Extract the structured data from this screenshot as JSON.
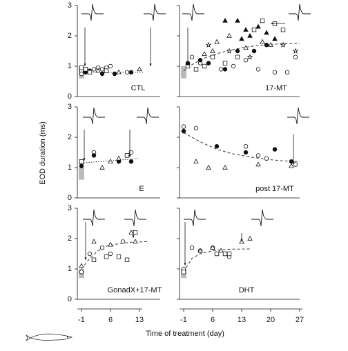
{
  "figure": {
    "y_label": "EOD duration (ms)",
    "x_label": "Time of treatment (day)"
  },
  "chart_data": [
    {
      "type": "scatter",
      "label": "CTL",
      "xlim": [
        -1,
        18
      ],
      "ylim": [
        0,
        3
      ],
      "yticks": [
        0,
        1,
        2,
        3
      ],
      "ytick_labels": true,
      "baseline_range": [
        0.6,
        1.0
      ],
      "fit": {
        "style": "dotted",
        "x": [
          -1,
          14
        ],
        "values": [
          0.8,
          0.8
        ]
      },
      "series": [
        {
          "marker": "circle",
          "filled": false,
          "x": [
            -1,
            -1,
            2,
            3,
            4,
            5,
            6,
            10
          ],
          "values": [
            0.85,
            0.75,
            0.9,
            0.95,
            0.9,
            0.95,
            1.0,
            0.8
          ]
        },
        {
          "marker": "circle",
          "filled": true,
          "x": [
            0,
            1,
            4,
            7,
            11
          ],
          "values": [
            0.8,
            0.85,
            0.75,
            0.75,
            0.8
          ]
        },
        {
          "marker": "triangle",
          "filled": false,
          "x": [
            3,
            8,
            13
          ],
          "values": [
            0.85,
            0.8,
            0.9
          ]
        },
        {
          "marker": "square",
          "filled": false,
          "x": [
            -1,
            0,
            1,
            5
          ],
          "values": [
            0.95,
            0.9,
            0.8,
            0.85
          ]
        }
      ]
    },
    {
      "type": "scatter",
      "label": "17-MT",
      "xlim": [
        -1,
        27
      ],
      "ylim": [
        0,
        3
      ],
      "yticks": [
        0,
        1,
        2,
        3
      ],
      "ytick_labels": false,
      "baseline_range": [
        0.6,
        1.0
      ],
      "fit": {
        "style": "dashed",
        "x": [
          -1,
          1,
          3,
          5,
          8,
          11,
          14,
          17,
          20,
          23,
          27
        ],
        "values": [
          0.85,
          1.05,
          1.2,
          1.32,
          1.45,
          1.55,
          1.63,
          1.68,
          1.72,
          1.74,
          1.75
        ]
      },
      "series": [
        {
          "marker": "triangle",
          "filled": true,
          "x": [
            9,
            12,
            13,
            14,
            15,
            17,
            19,
            21
          ],
          "values": [
            2.5,
            2.5,
            1.9,
            2.2,
            2.0,
            2.3,
            2.1,
            1.9
          ]
        },
        {
          "marker": "triangle",
          "filled": false,
          "x": [
            4,
            6,
            7,
            10,
            14,
            18,
            20
          ],
          "values": [
            1.4,
            1.5,
            1.8,
            2.0,
            1.6,
            1.8,
            1.7
          ]
        },
        {
          "marker": "star",
          "filled": false,
          "x": [
            5,
            10,
            15,
            23,
            26
          ],
          "values": [
            1.7,
            1.5,
            1.3,
            1.7,
            1.5
          ]
        },
        {
          "marker": "square",
          "filled": false,
          "x": [
            0,
            2,
            4,
            6,
            9,
            12,
            16,
            18,
            21,
            23
          ],
          "values": [
            1.0,
            0.9,
            1.0,
            1.3,
            1.1,
            1.3,
            2.2,
            2.5,
            2.4,
            2.2
          ]
        },
        {
          "marker": "circle",
          "filled": false,
          "x": [
            1,
            3,
            8,
            11,
            14,
            17,
            21,
            24,
            26
          ],
          "values": [
            1.3,
            1.1,
            0.9,
            1.0,
            1.2,
            0.9,
            0.8,
            0.8,
            1.3
          ]
        },
        {
          "marker": "circle",
          "filled": true,
          "x": [
            0,
            3,
            5,
            9,
            12,
            16,
            19
          ],
          "values": [
            1.1,
            1.2,
            1.1,
            0.9,
            1.5,
            1.5,
            1.7
          ]
        }
      ]
    },
    {
      "type": "scatter",
      "label": "E",
      "xlim": [
        -1,
        18
      ],
      "ylim": [
        0,
        3
      ],
      "yticks": [
        0,
        1,
        2,
        3
      ],
      "ytick_labels": true,
      "baseline_range": [
        0.6,
        1.0
      ],
      "fit": {
        "style": "dotted",
        "x": [
          -1,
          13
        ],
        "values": [
          1.15,
          1.3
        ]
      },
      "series": [
        {
          "marker": "circle",
          "filled": false,
          "x": [
            -1,
            2,
            11
          ],
          "values": [
            1.15,
            1.5,
            1.5
          ]
        },
        {
          "marker": "circle",
          "filled": true,
          "x": [
            -1,
            2,
            8,
            11
          ],
          "values": [
            1.05,
            1.4,
            1.2,
            1.2
          ]
        },
        {
          "marker": "square",
          "filled": false,
          "x": [
            -1,
            10
          ],
          "values": [
            1.2,
            1.4
          ]
        },
        {
          "marker": "triangle",
          "filled": false,
          "x": [
            4,
            6,
            8
          ],
          "values": [
            1.0,
            1.2,
            1.3
          ]
        }
      ]
    },
    {
      "type": "scatter",
      "label": "post 17-MT",
      "xlim": [
        -1,
        27
      ],
      "ylim": [
        0,
        3
      ],
      "yticks": [
        0,
        1,
        2,
        3
      ],
      "ytick_labels": false,
      "fit": {
        "style": "dashed",
        "x": [
          -1,
          3,
          7,
          11,
          15,
          19,
          23,
          27
        ],
        "values": [
          2.15,
          1.85,
          1.6,
          1.45,
          1.35,
          1.27,
          1.22,
          1.2
        ]
      },
      "series": [
        {
          "marker": "circle",
          "filled": false,
          "x": [
            -1,
            2,
            14,
            17,
            19,
            26
          ],
          "values": [
            2.35,
            2.3,
            1.7,
            1.4,
            1.3,
            1.1
          ]
        },
        {
          "marker": "circle",
          "filled": true,
          "x": [
            -1,
            7,
            14,
            21,
            25
          ],
          "values": [
            2.2,
            1.7,
            1.5,
            1.6,
            1.2
          ]
        },
        {
          "marker": "triangle",
          "filled": false,
          "x": [
            2,
            5,
            9,
            17,
            25
          ],
          "values": [
            1.2,
            1.0,
            1.0,
            1.1,
            1.05
          ]
        }
      ]
    },
    {
      "type": "scatter",
      "label": "GonadX+17-MT",
      "xlim": [
        -1,
        18
      ],
      "ylim": [
        0,
        3
      ],
      "yticks": [
        0,
        1,
        2,
        3
      ],
      "ytick_labels": true,
      "xticks": [
        -1,
        6,
        13
      ],
      "baseline_range": [
        0.7,
        1.0
      ],
      "fit": {
        "style": "dashed",
        "x": [
          -1,
          1,
          3,
          5,
          8,
          11,
          15
        ],
        "values": [
          1.0,
          1.35,
          1.6,
          1.75,
          1.83,
          1.88,
          1.9
        ]
      },
      "series": [
        {
          "marker": "triangle",
          "filled": false,
          "x": [
            -1,
            2,
            6,
            11,
            12
          ],
          "values": [
            1.1,
            1.9,
            1.8,
            2.2,
            1.9
          ]
        },
        {
          "marker": "circle",
          "filled": false,
          "x": [
            -1,
            1,
            4,
            6,
            9
          ],
          "values": [
            0.9,
            1.5,
            1.7,
            1.5,
            1.9
          ]
        },
        {
          "marker": "square",
          "filled": false,
          "x": [
            2,
            5,
            8,
            10,
            12
          ],
          "values": [
            1.3,
            1.4,
            1.4,
            1.3,
            2.2
          ]
        }
      ]
    },
    {
      "type": "scatter",
      "label": "DHT",
      "xlim": [
        -1,
        27
      ],
      "ylim": [
        0,
        3
      ],
      "yticks": [
        0,
        1,
        2,
        3
      ],
      "ytick_labels": false,
      "xticks": [
        -1,
        6,
        13,
        20,
        27
      ],
      "baseline_range": [
        0.7,
        1.0
      ],
      "fit": {
        "style": "dashed",
        "x": [
          -1,
          1,
          3,
          6,
          10,
          15
        ],
        "values": [
          0.9,
          1.35,
          1.5,
          1.6,
          1.65,
          1.66
        ]
      },
      "series": [
        {
          "marker": "circle",
          "filled": false,
          "x": [
            -1,
            1,
            3,
            6,
            10
          ],
          "values": [
            1.0,
            1.7,
            1.6,
            1.7,
            1.4
          ]
        },
        {
          "marker": "triangle",
          "filled": false,
          "x": [
            3,
            6,
            8,
            13,
            15
          ],
          "values": [
            1.6,
            1.7,
            1.6,
            1.9,
            2.0
          ]
        },
        {
          "marker": "square",
          "filled": false,
          "x": [
            -1,
            7,
            9,
            10
          ],
          "values": [
            0.9,
            1.5,
            1.5,
            1.5
          ]
        }
      ]
    }
  ]
}
